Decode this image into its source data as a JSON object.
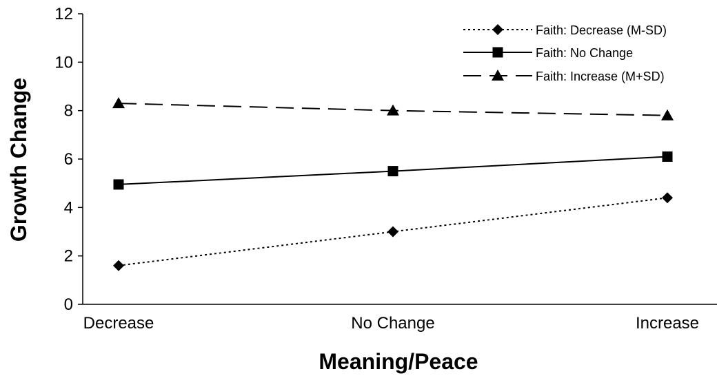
{
  "chart_data": {
    "type": "line",
    "title": "",
    "xlabel": "Meaning/Peace",
    "ylabel": "Growth Change",
    "categories": [
      "Decrease",
      "No Change",
      "Increase"
    ],
    "ylim": [
      0,
      12
    ],
    "yticks": [
      0,
      2,
      4,
      6,
      8,
      10,
      12
    ],
    "grid": false,
    "legend_position": "top-right",
    "series": [
      {
        "name": "Faith: Decrease (M-SD)",
        "values": [
          1.6,
          3.0,
          4.4
        ],
        "line_style": "dotted",
        "marker": "diamond",
        "color": "#000000"
      },
      {
        "name": "Faith: No Change",
        "values": [
          4.95,
          5.5,
          6.1
        ],
        "line_style": "solid",
        "marker": "square",
        "color": "#000000"
      },
      {
        "name": "Faith: Increase (M+SD)",
        "values": [
          8.3,
          8.0,
          7.8
        ],
        "line_style": "dashed",
        "marker": "triangle",
        "color": "#000000"
      }
    ]
  }
}
